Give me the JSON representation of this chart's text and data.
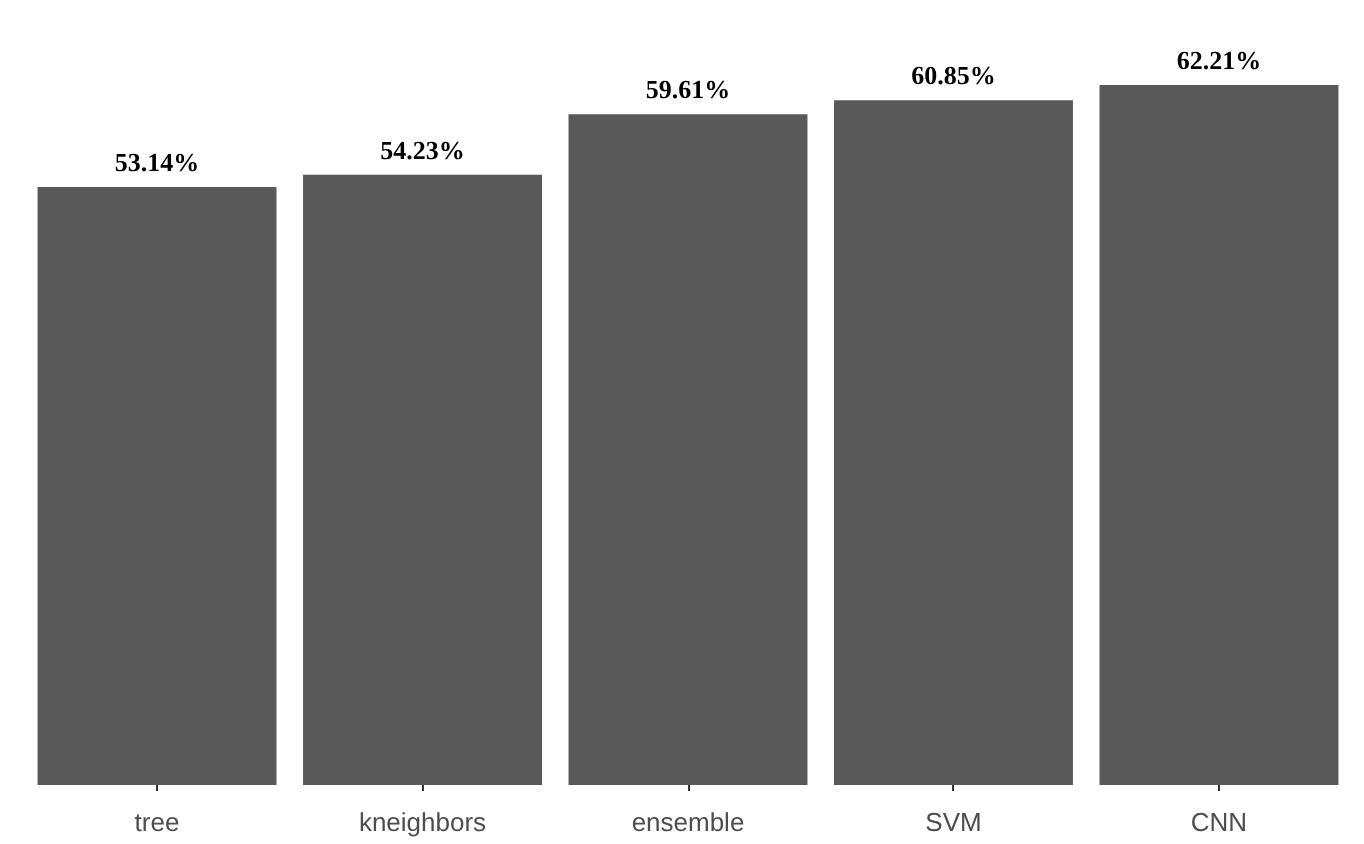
{
  "chart_data": {
    "type": "bar",
    "categories": [
      "tree",
      "kneighbors",
      "ensemble",
      "SVM",
      "CNN"
    ],
    "values": [
      53.14,
      54.23,
      59.61,
      60.85,
      62.21
    ],
    "value_labels": [
      "53.14%",
      "54.23%",
      "59.61%",
      "60.85%",
      "62.21%"
    ],
    "color": "#595959",
    "grid": false
  }
}
